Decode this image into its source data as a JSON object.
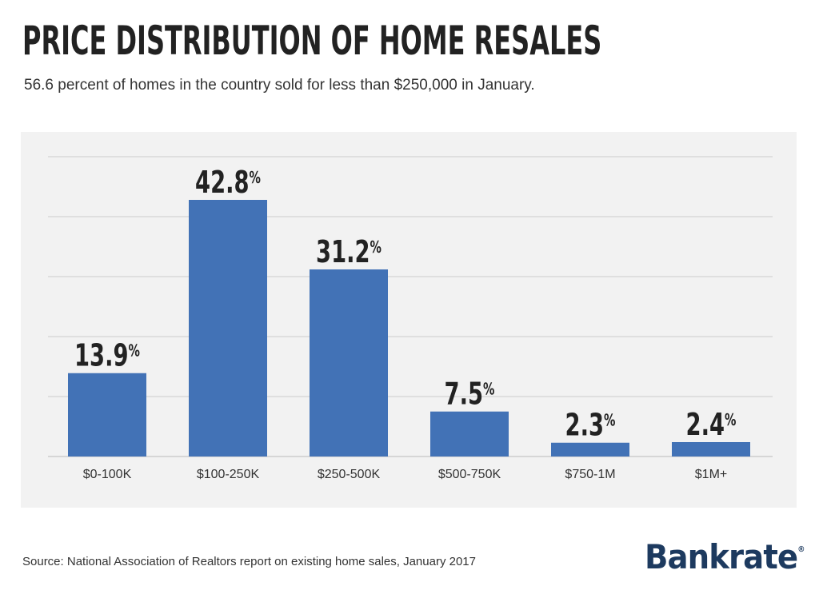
{
  "header": {
    "title": "PRICE DISTRIBUTION OF HOME RESALES",
    "subtitle": "56.6 percent of homes in the country sold for less than $250,000 in January."
  },
  "footer": {
    "source": "Source: National Association of Realtors report on existing home sales, January 2017",
    "logo": "Bankrate",
    "logo_mark": "®"
  },
  "colors": {
    "bar": "#4272b6",
    "panel": "#f2f2f2",
    "grid": "#cccccc",
    "text": "#222222"
  },
  "chart_data": {
    "type": "bar",
    "categories": [
      "$0-100K",
      "$100-250K",
      "$250-500K",
      "$500-750K",
      "$750-1M",
      "$1M+"
    ],
    "values": [
      13.9,
      42.8,
      31.2,
      7.5,
      2.3,
      2.4
    ],
    "value_labels": [
      "13.9",
      "42.8",
      "31.2",
      "7.5",
      "2.3",
      "2.4"
    ],
    "value_suffix": "%",
    "ylim": [
      0,
      50
    ],
    "grid": true,
    "legend": "none"
  }
}
